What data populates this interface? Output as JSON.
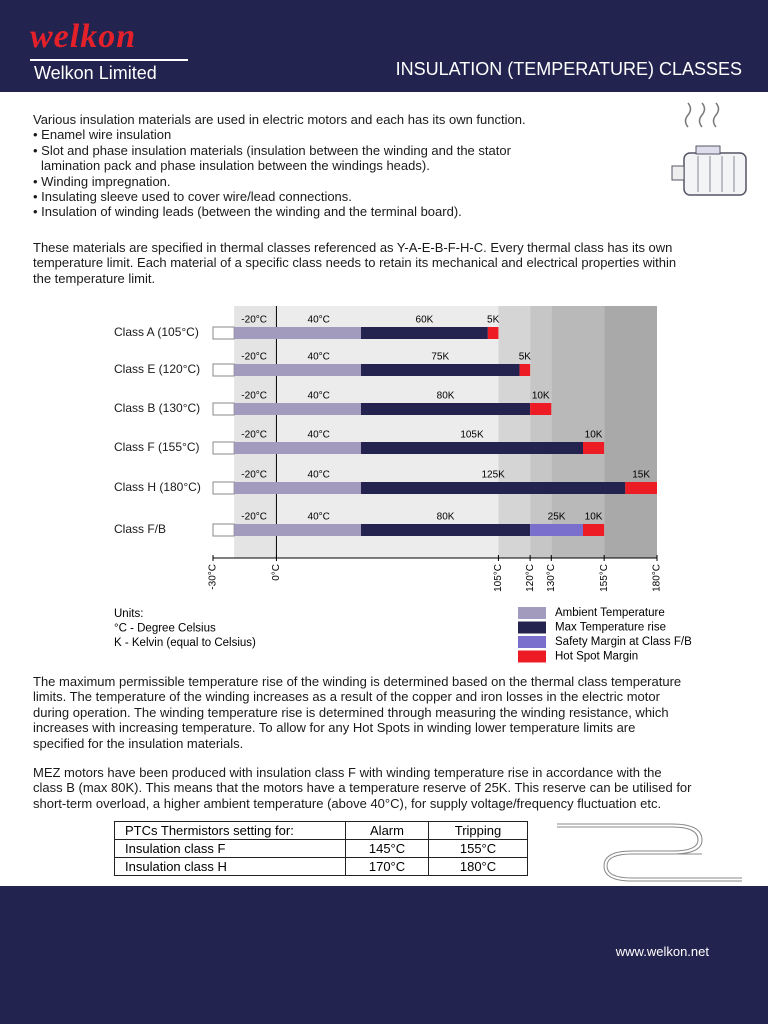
{
  "header": {
    "logo": "welkon",
    "company": "Welkon Limited",
    "title": "INSULATION (TEMPERATURE) CLASSES"
  },
  "intro": [
    "Various insulation materials are used in electric motors and each has its own function.",
    "• Enamel wire insulation",
    "• Slot and phase insulation materials (insulation between the winding and the stator",
    "lamination pack and phase insulation between the windings heads).",
    "• Winding impregnation.",
    "• Insulating sleeve used to cover wire/lead connections.",
    "• Insulation of winding leads (between the winding and the terminal board)."
  ],
  "paragraph_2": [
    "These materials are specified in thermal classes referenced  as Y-A-E-B-F-H-C.  Every thermal class has its own",
    "temperature limit. Each material of a specific class needs to retain its mechanical and electrical properties within",
    "the temperature limit."
  ],
  "chart_data": {
    "type": "bar",
    "orientation": "horizontal",
    "stacked": true,
    "categories": [
      "Class A (105°C)",
      "Class E (120°C)",
      "Class B (130°C)",
      "Class F (155°C)",
      "Class H (180°C)",
      "Class F/B"
    ],
    "series": [
      {
        "name": "Ambient Temperature",
        "color": "#a39bbd",
        "values": [
          [
            -20,
            40
          ],
          [
            -20,
            40
          ],
          [
            -20,
            40
          ],
          [
            -20,
            40
          ],
          [
            -20,
            40
          ],
          [
            -20,
            40
          ]
        ],
        "value_labels": [
          [
            "-20°C",
            "40°C"
          ],
          [
            "-20°C",
            "40°C"
          ],
          [
            "-20°C",
            "40°C"
          ],
          [
            "-20°C",
            "40°C"
          ],
          [
            "-20°C",
            "40°C"
          ],
          [
            "-20°C",
            "40°C"
          ]
        ]
      },
      {
        "name": "Max Temperature rise",
        "color": "#24234f",
        "values": [
          60,
          75,
          80,
          105,
          125,
          80
        ],
        "value_labels": [
          "60K",
          "75K",
          "80K",
          "105K",
          "125K",
          "80K"
        ]
      },
      {
        "name": "Safety Margin at Class F/B",
        "color": "#7a6fcc",
        "values": [
          null,
          null,
          null,
          null,
          null,
          25
        ],
        "value_labels": [
          null,
          null,
          null,
          null,
          null,
          "25K"
        ]
      },
      {
        "name": "Hot Spot Margin",
        "color": "#ed1c24",
        "values": [
          5,
          5,
          10,
          10,
          15,
          10
        ],
        "value_labels": [
          "5K",
          "5K",
          "10K",
          "10K",
          "15K",
          "10K"
        ]
      }
    ],
    "xlim": [
      -30,
      180
    ],
    "xticks": [
      {
        "value": -30,
        "label": "-30°C"
      },
      {
        "value": 0,
        "label": "0°C"
      },
      {
        "value": 105,
        "label": "105°C"
      },
      {
        "value": 120,
        "label": "120°C"
      },
      {
        "value": 130,
        "label": "130°C"
      },
      {
        "value": 155,
        "label": "155°C"
      },
      {
        "value": 180,
        "label": "180°C"
      }
    ],
    "units": [
      "Units:",
      "°C - Degree Celsius",
      " K  - Kelvin (equal to Celsius)"
    ]
  },
  "paragraph_3": [
    "The maximum permissible temperature rise of the winding is determined based on the thermal class temperature",
    "limits.  The temperature of the winding increases as a result of the copper and iron losses in the electric motor",
    "during operation. The winding temperature rise is determined through measuring the winding resistance, which",
    "increases with increasing temperature.  To allow for any Hot Spots in winding lower temperature limits are",
    "specified for the insulation materials."
  ],
  "paragraph_4": [
    "MEZ motors have been produced with insulation class F with winding temperature rise in accordance with the",
    "class B (max 80K).  This means that the motors have a temperature reserve of 25K.  This reserve can be utilised for",
    "short-term overload, a higher ambient temperature (above 40°C), for supply voltage/frequency fluctuation etc."
  ],
  "table": {
    "header": [
      "PTCs Thermistors setting for:",
      "Alarm",
      "Tripping"
    ],
    "rows": [
      [
        "Insulation class F",
        "145°C",
        "155°C"
      ],
      [
        "Insulation class H",
        "170°C",
        "180°C"
      ]
    ]
  },
  "footer": {
    "url": "www.welkon.net"
  }
}
